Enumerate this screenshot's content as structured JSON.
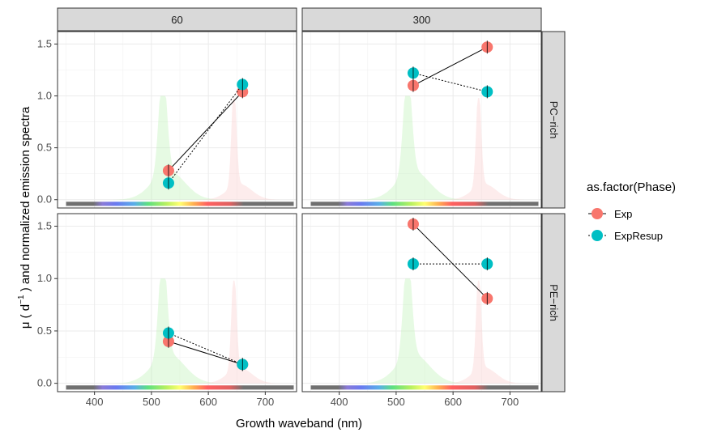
{
  "chart_data": {
    "type": "scatter",
    "x_label": "Growth waveband (nm)",
    "y_label_main": "μ ( d",
    "y_label_sup": "−1",
    "y_label_rest": " ) and normalized emission spectra",
    "x_ticks": [
      400,
      500,
      600,
      700
    ],
    "y_ticks": [
      0.0,
      0.5,
      1.0,
      1.5
    ],
    "y_tick_labels": [
      "0.0",
      "0.5",
      "1.0",
      "1.5"
    ],
    "xlim": [
      335,
      755
    ],
    "ylim": [
      -0.08,
      1.62
    ],
    "col_facets": [
      "60",
      "300"
    ],
    "row_facets": [
      "PC−rich",
      "PE−rich"
    ],
    "legend_title": "as.factor(Phase)",
    "legend_items": [
      "Exp",
      "ExpResup"
    ],
    "series_colors": {
      "Exp": "#F8766D",
      "ExpResup": "#00BFC4"
    },
    "emission_green": {
      "center": 520,
      "color": "#b8f0b0"
    },
    "emission_red": {
      "center": 645,
      "color": "#f8c8c8"
    },
    "spectrum_bar_range": [
      350,
      750
    ],
    "panels": [
      {
        "col": "60",
        "row": "PC−rich",
        "series": [
          {
            "name": "Exp",
            "points": [
              [
                530,
                0.28
              ],
              [
                660,
                1.04
              ]
            ]
          },
          {
            "name": "ExpResup",
            "points": [
              [
                530,
                0.16
              ],
              [
                660,
                1.11
              ]
            ]
          }
        ]
      },
      {
        "col": "300",
        "row": "PC−rich",
        "series": [
          {
            "name": "Exp",
            "points": [
              [
                530,
                1.1
              ],
              [
                660,
                1.47
              ]
            ]
          },
          {
            "name": "ExpResup",
            "points": [
              [
                530,
                1.22
              ],
              [
                660,
                1.04
              ]
            ]
          }
        ]
      },
      {
        "col": "60",
        "row": "PE−rich",
        "series": [
          {
            "name": "Exp",
            "points": [
              [
                530,
                0.4
              ],
              [
                660,
                0.18
              ]
            ]
          },
          {
            "name": "ExpResup",
            "points": [
              [
                530,
                0.48
              ],
              [
                660,
                0.18
              ]
            ]
          }
        ]
      },
      {
        "col": "300",
        "row": "PE−rich",
        "series": [
          {
            "name": "Exp",
            "points": [
              [
                530,
                1.52
              ],
              [
                660,
                0.81
              ]
            ]
          },
          {
            "name": "ExpResup",
            "points": [
              [
                530,
                1.14
              ],
              [
                660,
                1.14
              ]
            ]
          }
        ]
      }
    ]
  }
}
